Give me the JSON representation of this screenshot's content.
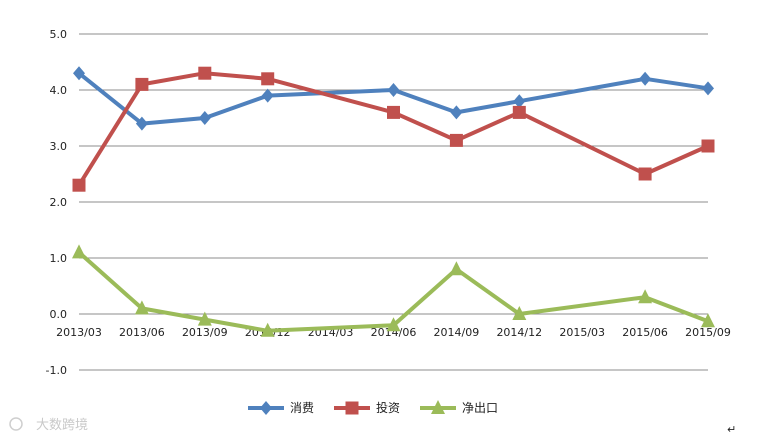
{
  "chart_data": {
    "type": "line",
    "x": [
      "2013/03",
      "2013/06",
      "2013/09",
      "2013/12",
      "2014/03",
      "2014/06",
      "2014/09",
      "2014/12",
      "2015/03",
      "2015/06",
      "2015/09"
    ],
    "ylim": [
      -1.0,
      5.0
    ],
    "yticks": [
      "5.0",
      "4.0",
      "3.0",
      "2.0",
      "1.0",
      "0.0",
      "-1.0"
    ],
    "grid": true,
    "legend_position": "bottom",
    "series": [
      {
        "name": "消费",
        "color": "#4f81bd",
        "marker": "diamond",
        "values": [
          4.3,
          3.4,
          3.5,
          3.9,
          null,
          4.0,
          3.6,
          3.8,
          null,
          4.2,
          4.03
        ]
      },
      {
        "name": "投资",
        "color": "#c0504d",
        "marker": "square",
        "values": [
          2.3,
          4.1,
          4.3,
          4.2,
          null,
          3.6,
          3.1,
          3.6,
          null,
          2.5,
          3.0
        ]
      },
      {
        "name": "净出口",
        "color": "#9bbb59",
        "marker": "triangle",
        "values": [
          1.1,
          0.1,
          -0.1,
          -0.3,
          null,
          -0.2,
          0.8,
          0.0,
          null,
          0.3,
          -0.13
        ]
      }
    ]
  },
  "watermark": "大数跨境",
  "corner_mark": "↵"
}
